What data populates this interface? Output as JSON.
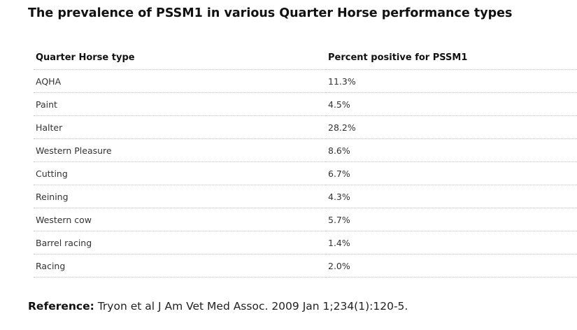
{
  "title": "The prevalence of PSSM1 in various Quarter Horse performance types",
  "table": {
    "headers": [
      "Quarter Horse type",
      "Percent positive for PSSM1"
    ],
    "rows": [
      {
        "type": "AQHA",
        "percent": "11.3%"
      },
      {
        "type": "Paint",
        "percent": "4.5%"
      },
      {
        "type": "Halter",
        "percent": "28.2%"
      },
      {
        "type": "Western Pleasure",
        "percent": "8.6%"
      },
      {
        "type": "Cutting",
        "percent": "6.7%"
      },
      {
        "type": "Reining",
        "percent": "4.3%"
      },
      {
        "type": "Western cow",
        "percent": "5.7%"
      },
      {
        "type": "Barrel racing",
        "percent": "1.4%"
      },
      {
        "type": "Racing",
        "percent": "2.0%"
      }
    ]
  },
  "reference": {
    "label": "Reference:",
    "text": " Tryon et al J Am Vet Med Assoc. 2009 Jan 1;234(1):120-5."
  }
}
